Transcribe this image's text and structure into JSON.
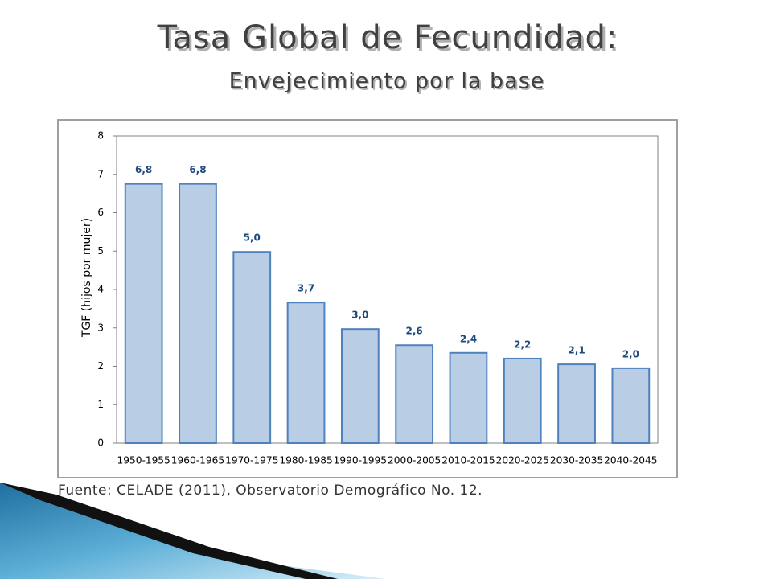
{
  "title": "Tasa Global de Fecundidad:",
  "subtitle": "Envejecimiento por la base",
  "source": "Fuente: CELADE (2011), Observatorio Demográfico No. 12.",
  "chart_data": {
    "type": "bar",
    "y_label": "TGF (hijos por mujer)",
    "categories": [
      "1950-1955",
      "1960-1965",
      "1970-1975",
      "1980-1985",
      "1990-1995",
      "2000-2005",
      "2010-2015",
      "2020-2025",
      "2030-2035",
      "2040-2045"
    ],
    "values": [
      6.75,
      6.75,
      4.98,
      3.66,
      2.97,
      2.55,
      2.35,
      2.2,
      2.05,
      1.95
    ],
    "value_labels": [
      "6,8",
      "6,8",
      "5,0",
      "3,7",
      "3,0",
      "2,6",
      "2,4",
      "2,2",
      "2,1",
      "2,0"
    ],
    "color": "#b9cde5",
    "edge_color": "#4f81bd",
    "ylim": [
      0,
      8
    ],
    "yticks": [
      0,
      1,
      2,
      3,
      4,
      5,
      6,
      7,
      8
    ],
    "grid": false
  }
}
